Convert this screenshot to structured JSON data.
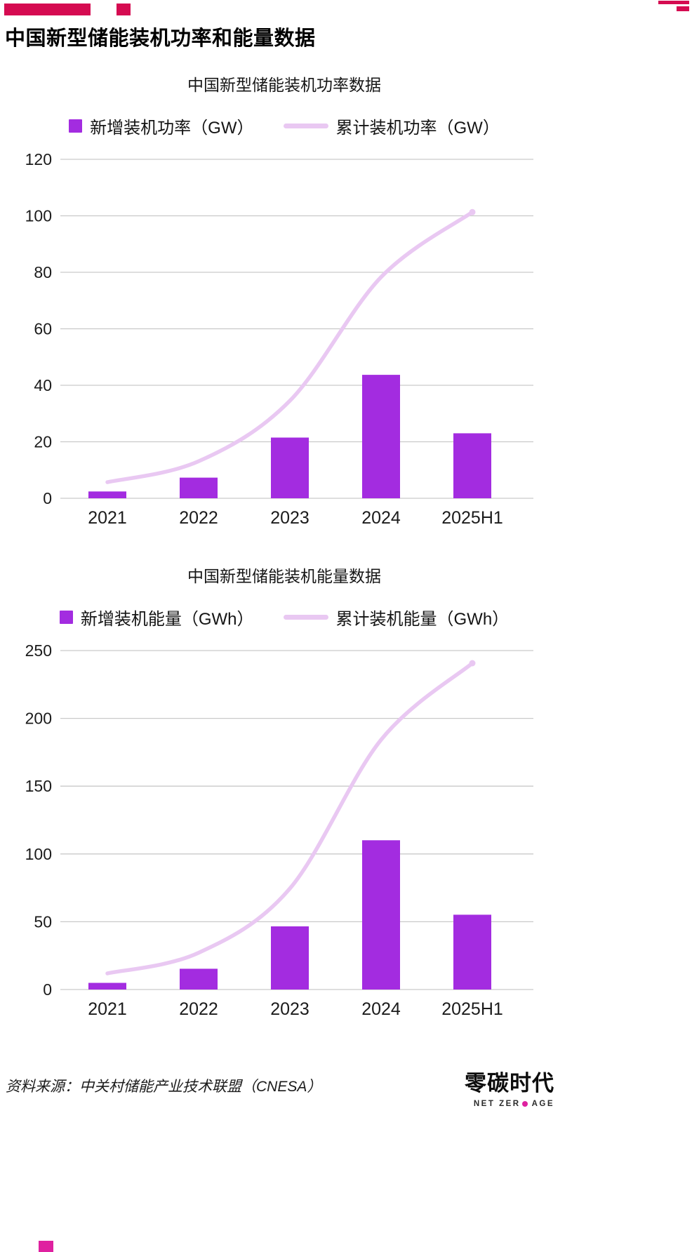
{
  "page": {
    "title": "中国新型储能装机功率和能量数据"
  },
  "colors": {
    "bar": "#a32ce0",
    "line": "#e9c8f2",
    "deco_red": "#d50b51",
    "dot_pink": "#df21a0",
    "grid": "#c9c9c9"
  },
  "chart_data": [
    {
      "type": "bar",
      "title": "中国新型储能装机功率数据",
      "categories": [
        "2021",
        "2022",
        "2023",
        "2024",
        "2025H1"
      ],
      "series": [
        {
          "name": "新增装机功率（GW）",
          "type": "bar",
          "values": [
            2.4,
            7.3,
            21.5,
            43.7,
            23.0
          ]
        },
        {
          "name": "累计装机功率（GW）",
          "type": "line",
          "values": [
            5.7,
            13.1,
            34.5,
            78.3,
            101.3
          ]
        }
      ],
      "ylim": [
        0,
        120
      ],
      "ytick_step": 20,
      "grid": true,
      "legend_position": "top"
    },
    {
      "type": "bar",
      "title": "中国新型储能装机能量数据",
      "categories": [
        "2021",
        "2022",
        "2023",
        "2024",
        "2025H1"
      ],
      "series": [
        {
          "name": "新增装机能量（GWh）",
          "type": "bar",
          "values": [
            4.9,
            15.3,
            46.6,
            110.1,
            55.2
          ]
        },
        {
          "name": "累计装机能量（GWh）",
          "type": "line",
          "values": [
            11.9,
            27.1,
            74.5,
            184.2,
            240.7
          ]
        }
      ],
      "ylim": [
        0,
        250
      ],
      "ytick_step": 50,
      "grid": true,
      "legend_position": "top"
    }
  ],
  "footer": {
    "source": "资料来源：中关村储能产业技术联盟（CNESA）",
    "logo_cn": "零碳时代",
    "logo_en_left": "NET ZER",
    "logo_en_right": "AGE"
  }
}
